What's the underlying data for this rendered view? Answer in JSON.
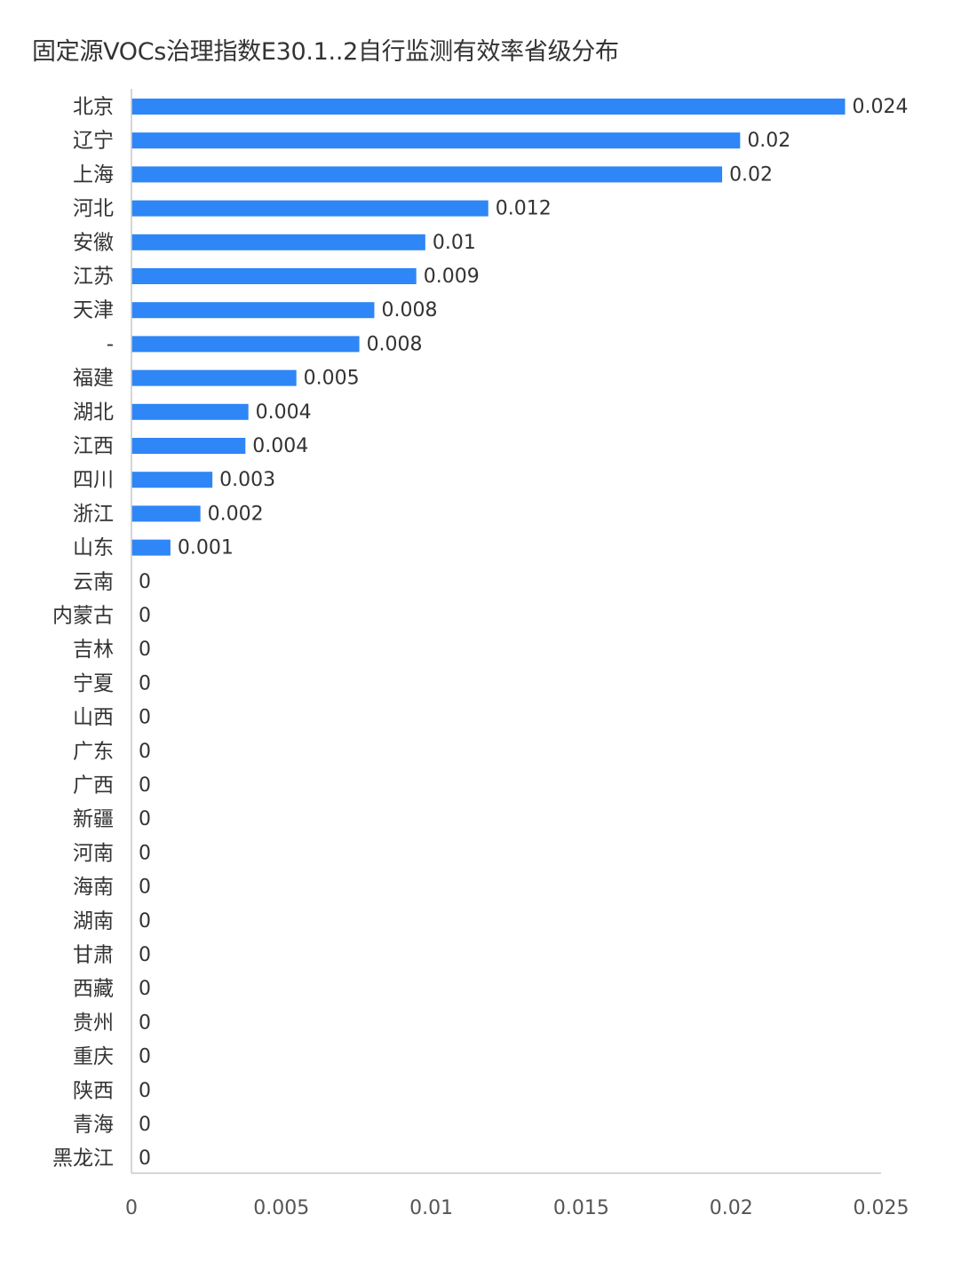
{
  "chart_data": {
    "type": "bar",
    "orientation": "horizontal",
    "title": "固定源VOCs治理指数E30.1..2自行监测有效率省级分布",
    "xlabel": "",
    "ylabel": "",
    "xlim": [
      0,
      0.025
    ],
    "x_ticks": [
      "0",
      "0.005",
      "0.01",
      "0.015",
      "0.02",
      "0.025"
    ],
    "x_tick_values": [
      0,
      0.005,
      0.01,
      0.015,
      0.02,
      0.025
    ],
    "grid": false,
    "legend": "none",
    "bar_color": "#2e86f7",
    "categories": [
      "北京",
      "辽宁",
      "上海",
      "河北",
      "安徽",
      "江苏",
      "天津",
      "-",
      "福建",
      "湖北",
      "江西",
      "四川",
      "浙江",
      "山东",
      "云南",
      "内蒙古",
      "吉林",
      "宁夏",
      "山西",
      "广东",
      "广西",
      "新疆",
      "河南",
      "海南",
      "湖南",
      "甘肃",
      "西藏",
      "贵州",
      "重庆",
      "陕西",
      "青海",
      "黑龙江"
    ],
    "values": [
      0.0238,
      0.0203,
      0.0197,
      0.0119,
      0.0098,
      0.0095,
      0.0081,
      0.0076,
      0.0055,
      0.0039,
      0.0038,
      0.0027,
      0.0023,
      0.0013,
      0,
      0,
      0,
      0,
      0,
      0,
      0,
      0,
      0,
      0,
      0,
      0,
      0,
      0,
      0,
      0,
      0,
      0
    ],
    "value_labels": [
      "0.024",
      "0.02",
      "0.02",
      "0.012",
      "0.01",
      "0.009",
      "0.008",
      "0.008",
      "0.005",
      "0.004",
      "0.004",
      "0.003",
      "0.002",
      "0.001",
      "0",
      "0",
      "0",
      "0",
      "0",
      "0",
      "0",
      "0",
      "0",
      "0",
      "0",
      "0",
      "0",
      "0",
      "0",
      "0",
      "0",
      "0"
    ]
  }
}
